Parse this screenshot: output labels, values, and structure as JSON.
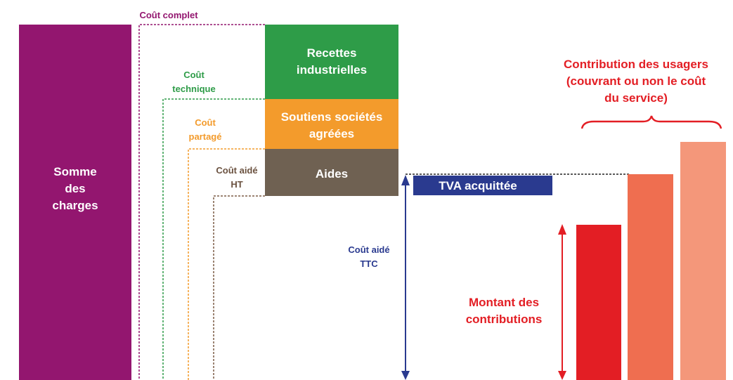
{
  "somme_des_charges": [
    "Somme",
    "des",
    "charges"
  ],
  "cout_complet": "Coût complet",
  "cout_technique": [
    "Coût",
    "technique"
  ],
  "cout_partage": [
    "Coût",
    "partagé"
  ],
  "cout_aide_ht": [
    "Coût aidé",
    "HT"
  ],
  "recettes_industrielles": [
    "Recettes",
    "industrielles"
  ],
  "soutiens_societes_agreees": [
    "Soutiens sociétés",
    "agréées"
  ],
  "aides": "Aides",
  "tva_acquittee": "TVA acquittée",
  "cout_aide_ttc": [
    "Coût aidé",
    "TTC"
  ],
  "montant_des_contributions": [
    "Montant des",
    "contributions"
  ],
  "contribution_des_usagers": [
    "Contribution des usagers",
    "(couvrant ou non le coût",
    "du service)"
  ]
}
